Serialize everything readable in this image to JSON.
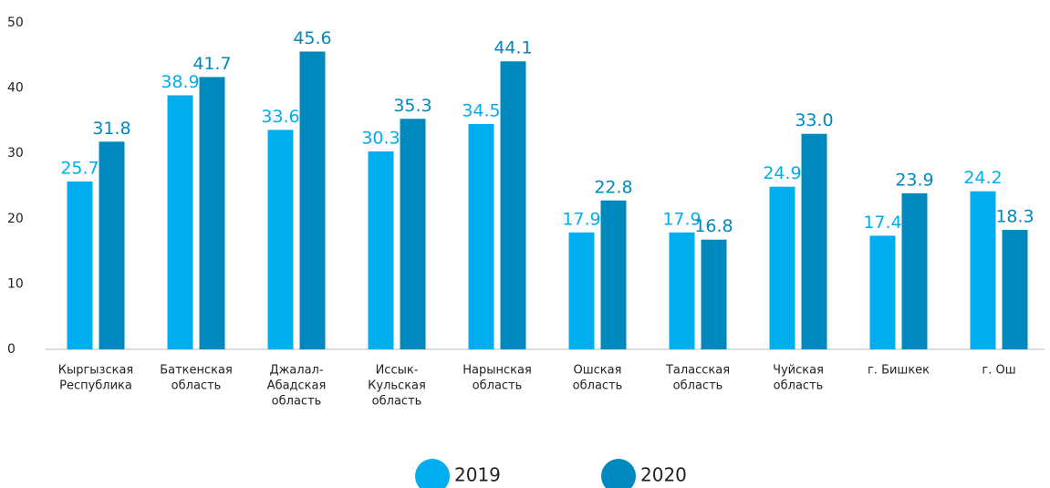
{
  "chart_data": {
    "type": "bar",
    "categories": [
      [
        "Кыргызская",
        "Республика"
      ],
      [
        "Баткенская",
        "область"
      ],
      [
        "Джалал-",
        "Абадская",
        "область"
      ],
      [
        "Иссык-",
        "Кульская",
        "область"
      ],
      [
        "Нарынская",
        "область"
      ],
      [
        "Ошская",
        "область"
      ],
      [
        "Таласская",
        "область"
      ],
      [
        "Чуйская",
        "область"
      ],
      [
        "г. Бишкек"
      ],
      [
        "г. Ош"
      ]
    ],
    "series": [
      {
        "name": "2019",
        "color": "#00adef",
        "values": [
          25.7,
          38.9,
          33.6,
          30.3,
          34.5,
          17.9,
          17.9,
          24.9,
          17.4,
          24.2
        ],
        "value_labels": [
          "25.7",
          "38.9",
          "33.6",
          "30.3",
          "34.5",
          "17.9",
          "17.9",
          "24.9",
          "17.4",
          "24.2"
        ]
      },
      {
        "name": "2020",
        "color": "#0089bf",
        "values": [
          31.8,
          41.7,
          45.6,
          35.3,
          44.1,
          22.8,
          16.8,
          33,
          23.9,
          18.3
        ],
        "value_labels": [
          "31.8",
          "41.7",
          "45.6",
          "35.3",
          "44.1",
          "22.8",
          "16.8",
          "33.0",
          "23.9",
          "18.3"
        ]
      }
    ],
    "ylim": [
      0,
      50
    ],
    "yticks": [
      0,
      10,
      20,
      30,
      40,
      50
    ],
    "grid": false
  }
}
